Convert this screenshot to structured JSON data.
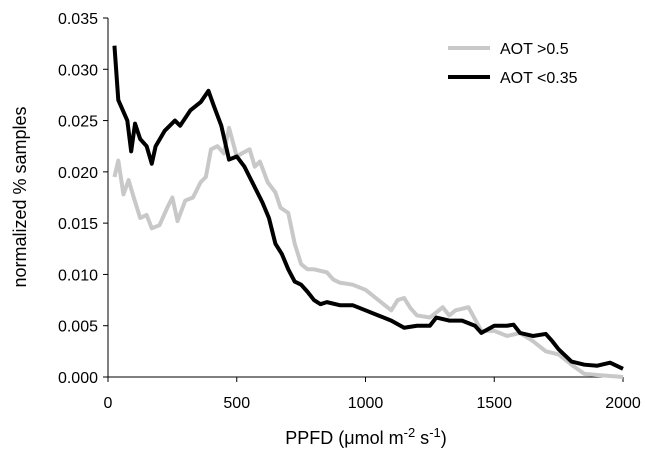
{
  "chart_data": {
    "type": "line",
    "y_label": "normalized % samples",
    "x_label": {
      "prefix": "PPFD (μmol m",
      "exp1": "-2",
      "mid": " s",
      "exp2": "-1",
      "suffix": ")"
    },
    "xlim": [
      0,
      2000
    ],
    "xticks": [
      0,
      500,
      1000,
      1500,
      2000
    ],
    "ylim": [
      0,
      0.035
    ],
    "yticks": [
      {
        "value": 0,
        "label": "0.000"
      },
      0.005,
      {
        "value": 0.01,
        "label": "0.010"
      },
      0.015,
      {
        "value": 0.02,
        "label": "0.020"
      },
      0.025,
      {
        "value": 0.03,
        "label": "0.030"
      },
      0.035
    ],
    "legend": "upper right",
    "series": [
      {
        "name": "AOT >0.5",
        "color": "#c8c8c8",
        "x": [
          25,
          40,
          60,
          80,
          100,
          125,
          150,
          170,
          200,
          230,
          250,
          270,
          300,
          330,
          360,
          380,
          400,
          425,
          450,
          470,
          500,
          520,
          550,
          570,
          590,
          620,
          650,
          670,
          700,
          725,
          750,
          775,
          800,
          850,
          875,
          900,
          950,
          1000,
          1050,
          1100,
          1125,
          1150,
          1175,
          1200,
          1250,
          1300,
          1325,
          1350,
          1400,
          1450,
          1500,
          1550,
          1600,
          1650,
          1700,
          1750,
          1800,
          1850,
          1900,
          2000
        ],
        "values": [
          0.0195,
          0.0211,
          0.0178,
          0.0192,
          0.0175,
          0.0155,
          0.0158,
          0.0145,
          0.0148,
          0.0165,
          0.0175,
          0.0152,
          0.0172,
          0.0175,
          0.019,
          0.0195,
          0.0222,
          0.0225,
          0.0218,
          0.0243,
          0.0215,
          0.0218,
          0.0222,
          0.0205,
          0.021,
          0.019,
          0.018,
          0.0165,
          0.016,
          0.013,
          0.011,
          0.0105,
          0.0105,
          0.0102,
          0.0095,
          0.0092,
          0.009,
          0.0085,
          0.0075,
          0.0065,
          0.0075,
          0.0077,
          0.0067,
          0.006,
          0.0058,
          0.0068,
          0.006,
          0.0065,
          0.0068,
          0.0045,
          0.0045,
          0.004,
          0.0043,
          0.0035,
          0.0025,
          0.0022,
          0.0012,
          0.0003,
          0.0002,
          0
        ]
      },
      {
        "name": "AOT <0.35",
        "color": "#000000",
        "x": [
          25,
          40,
          75,
          90,
          105,
          125,
          150,
          170,
          185,
          220,
          260,
          280,
          320,
          360,
          390,
          410,
          440,
          470,
          500,
          530,
          560,
          600,
          625,
          650,
          675,
          700,
          725,
          750,
          775,
          800,
          825,
          850,
          900,
          950,
          1000,
          1050,
          1100,
          1150,
          1200,
          1250,
          1275,
          1325,
          1375,
          1425,
          1450,
          1500,
          1550,
          1575,
          1600,
          1650,
          1700,
          1725,
          1750,
          1800,
          1850,
          1900,
          1950,
          2000
        ],
        "values": [
          0.0323,
          0.027,
          0.025,
          0.022,
          0.0247,
          0.0232,
          0.0225,
          0.0208,
          0.0225,
          0.024,
          0.025,
          0.0245,
          0.026,
          0.0268,
          0.0279,
          0.0265,
          0.0245,
          0.0212,
          0.0215,
          0.0205,
          0.019,
          0.017,
          0.0155,
          0.013,
          0.012,
          0.0105,
          0.0093,
          0.009,
          0.0083,
          0.0075,
          0.0071,
          0.0073,
          0.007,
          0.007,
          0.0065,
          0.006,
          0.0055,
          0.0048,
          0.005,
          0.005,
          0.0058,
          0.0055,
          0.0055,
          0.005,
          0.0043,
          0.005,
          0.005,
          0.0051,
          0.0043,
          0.004,
          0.0042,
          0.0035,
          0.0027,
          0.0015,
          0.0012,
          0.0011,
          0.0014,
          0.0008
        ]
      }
    ]
  }
}
